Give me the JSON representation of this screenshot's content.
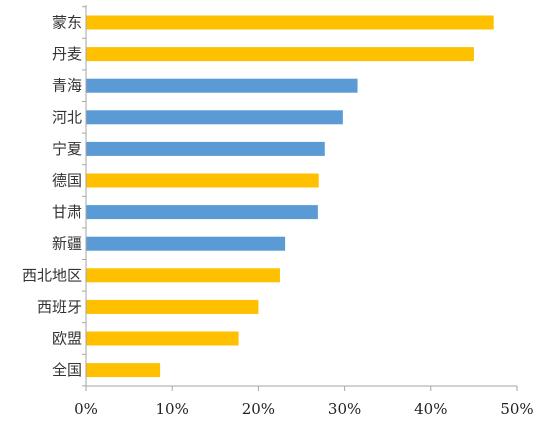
{
  "chart_data": {
    "type": "bar",
    "orientation": "horizontal",
    "categories": [
      "蒙东",
      "丹麦",
      "青海",
      "河北",
      "宁夏",
      "德国",
      "甘肃",
      "新疆",
      "西北地区",
      "西班牙",
      "欧盟",
      "全国"
    ],
    "values": [
      47.3,
      45.0,
      31.5,
      29.8,
      27.7,
      27.0,
      26.9,
      23.1,
      22.5,
      20.0,
      17.7,
      8.6
    ],
    "category_colors": [
      "#FFC000",
      "#FFC000",
      "#5B9BD5",
      "#5B9BD5",
      "#5B9BD5",
      "#FFC000",
      "#5B9BD5",
      "#5B9BD5",
      "#FFC000",
      "#FFC000",
      "#FFC000",
      "#FFC000"
    ],
    "xlim": [
      0,
      50
    ],
    "x_ticks": [
      0,
      10,
      20,
      30,
      40,
      50
    ],
    "x_tick_labels": [
      "0%",
      "10%",
      "20%",
      "30%",
      "40%",
      "50%"
    ],
    "title": "",
    "xlabel": "",
    "ylabel": "",
    "grid": false,
    "legend": "none"
  }
}
